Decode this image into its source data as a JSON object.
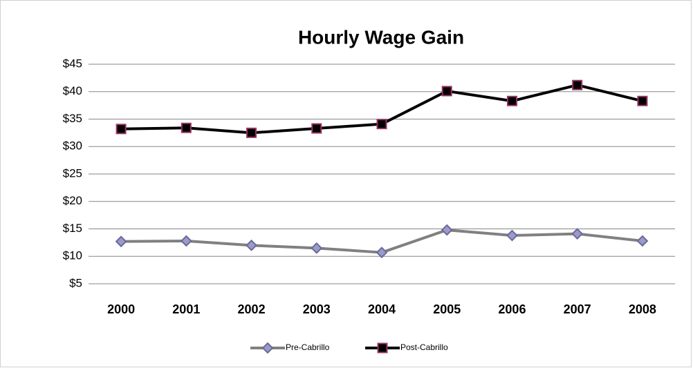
{
  "chart_data": {
    "type": "line",
    "title": "Hourly Wage Gain",
    "categories": [
      "2000",
      "2001",
      "2002",
      "2003",
      "2004",
      "2005",
      "2006",
      "2007",
      "2008"
    ],
    "series": [
      {
        "name": "Pre-Cabrillo",
        "color": "#808080",
        "marker": "diamond",
        "marker_color": "#9a9acb",
        "marker_edge": "#6a6a96",
        "values": [
          12.7,
          12.8,
          12.0,
          11.5,
          10.7,
          14.8,
          13.8,
          14.1,
          12.8
        ]
      },
      {
        "name": "Post-Cabrillo",
        "color": "#000000",
        "marker": "square",
        "marker_color": "#000000",
        "marker_edge": "#993366",
        "values": [
          33.2,
          33.4,
          32.5,
          33.3,
          34.1,
          40.1,
          38.3,
          41.2,
          38.3
        ]
      }
    ],
    "ylim": [
      5,
      45
    ],
    "yticks": [
      {
        "value": 5,
        "label": "$5"
      },
      {
        "value": 10,
        "label": "$10"
      },
      {
        "value": 15,
        "label": "$15"
      },
      {
        "value": 20,
        "label": "$20"
      },
      {
        "value": 25,
        "label": "$25"
      },
      {
        "value": 30,
        "label": "$30"
      },
      {
        "value": 35,
        "label": "$35"
      },
      {
        "value": 40,
        "label": "$40"
      },
      {
        "value": 45,
        "label": "$45"
      }
    ],
    "grid": true,
    "legend": "bottom"
  }
}
